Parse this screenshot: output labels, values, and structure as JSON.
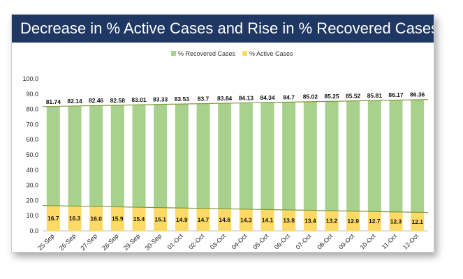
{
  "chart_data": {
    "type": "bar",
    "title": "Decrease in % Active Cases and Rise in % Recovered Cases",
    "categories": [
      "25-Sep",
      "26-Sep",
      "27-Sep",
      "28-Sep",
      "29-Sep",
      "30-Sep",
      "01-Oct",
      "02-Oct",
      "03-Oct",
      "04-Oct",
      "05-Oct",
      "06-Oct",
      "07-Oct",
      "08-Oct",
      "09-Oct",
      "10-Oct",
      "11-Oct",
      "12-Oct"
    ],
    "series": [
      {
        "name": "% Recovered Cases",
        "color": "#a9d18e",
        "labels": [
          "81.74",
          "82.14",
          "82.46",
          "82.58",
          "83.01",
          "83.33",
          "83.53",
          "83.7",
          "83.84",
          "84.13",
          "84.34",
          "84.7",
          "85.02",
          "85.25",
          "85.52",
          "85.81",
          "86.17",
          "86.36"
        ],
        "values": [
          81.74,
          82.14,
          82.46,
          82.58,
          83.01,
          83.33,
          83.53,
          83.7,
          83.84,
          84.13,
          84.34,
          84.7,
          85.02,
          85.25,
          85.52,
          85.81,
          86.17,
          86.36
        ]
      },
      {
        "name": "% Active Cases",
        "color": "#ffd966",
        "labels": [
          "16.7",
          "16.3",
          "16.0",
          "15.9",
          "15.4",
          "15.1",
          "14.9",
          "14.7",
          "14.6",
          "14.3",
          "14.1",
          "13.8",
          "13.4",
          "13.2",
          "12.9",
          "12.7",
          "12.3",
          "12.1"
        ],
        "values": [
          16.7,
          16.3,
          16.0,
          15.9,
          15.4,
          15.1,
          14.9,
          14.7,
          14.6,
          14.3,
          14.1,
          13.8,
          13.4,
          13.2,
          12.9,
          12.7,
          12.3,
          12.1
        ]
      }
    ],
    "yticks": [
      "0.0",
      "10.0",
      "20.0",
      "30.0",
      "40.0",
      "50.0",
      "60.0",
      "70.0",
      "80.0",
      "90.0",
      "100.0"
    ],
    "ylim": [
      0,
      100
    ],
    "legend": "top-center",
    "trendline_color": "#7f9a3a"
  }
}
